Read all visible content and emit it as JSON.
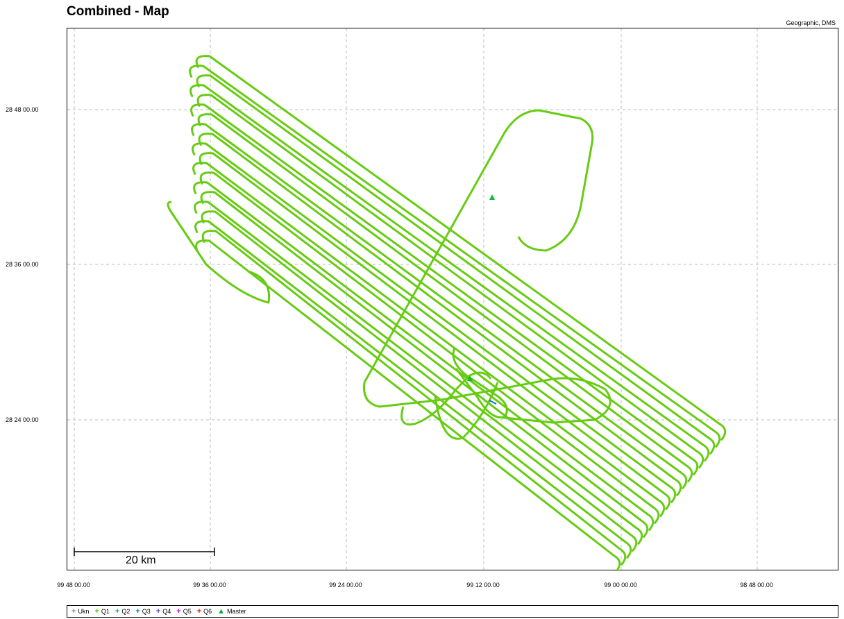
{
  "header": {
    "title": "Combined - Map",
    "coordinate_system": "Geographic, DMS"
  },
  "axes": {
    "y_ticks": [
      "28 48 00.00",
      "28 36 00.00",
      "28 24 00.00"
    ],
    "x_ticks": [
      "99 48 00.00",
      "99 36 00.00",
      "99 24 00.00",
      "99 12 00.00",
      "99 00 00.00",
      "98 48 00.00"
    ]
  },
  "scale_bar": {
    "label": "20 km"
  },
  "legend": {
    "items": [
      {
        "symbol": "+",
        "label": "Ukn",
        "color": "#888888"
      },
      {
        "symbol": "+",
        "label": "Q1",
        "color": "#55bb00"
      },
      {
        "symbol": "+",
        "label": "Q2",
        "color": "#00aa66"
      },
      {
        "symbol": "+",
        "label": "Q3",
        "color": "#0077cc"
      },
      {
        "symbol": "+",
        "label": "Q4",
        "color": "#4444cc"
      },
      {
        "symbol": "+",
        "label": "Q5",
        "color": "#cc00cc"
      },
      {
        "symbol": "+",
        "label": "Q6",
        "color": "#ee0000"
      },
      {
        "symbol": "▲",
        "label": "Master",
        "color": "#00aa44"
      }
    ]
  },
  "colors": {
    "track": "#66cc11",
    "grid": "#bbbbbb",
    "master": "#11bb33"
  }
}
